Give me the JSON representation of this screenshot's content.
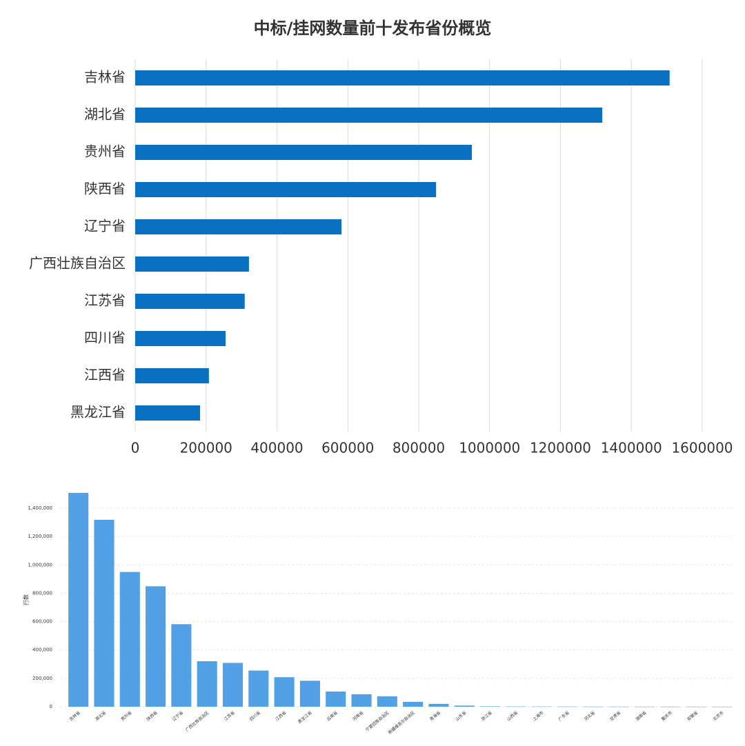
{
  "chart_data": [
    {
      "type": "barh",
      "title": "中标/挂网数量前十发布省份概览",
      "categories": [
        "吉林省",
        "湖北省",
        "贵州省",
        "陕西省",
        "辽宁省",
        "广西壮族自治区",
        "江苏省",
        "四川省",
        "江西省",
        "黑龙江省"
      ],
      "values": [
        1508000,
        1318000,
        950000,
        849000,
        582000,
        321000,
        309000,
        255000,
        208000,
        183000
      ],
      "color": "#0a70c2",
      "xlim": [
        0,
        1600000
      ],
      "xticks": [
        0,
        200000,
        400000,
        600000,
        800000,
        1000000,
        1200000,
        1400000,
        1600000
      ],
      "grid": true
    },
    {
      "type": "bar",
      "ylabel": "行数",
      "categories": [
        "吉林省",
        "湖北省",
        "贵州省",
        "陕西省",
        "辽宁省",
        "广西壮族自治区",
        "江苏省",
        "四川省",
        "江西省",
        "黑龙江省",
        "云南省",
        "河南省",
        "宁夏回族自治区",
        "新疆维吾尔自治区",
        "青海省",
        "山东省",
        "浙江省",
        "山西省",
        "上海市",
        "广东省",
        "河北省",
        "甘肃省",
        "湖南省",
        "重庆市",
        "安徽省",
        "北京市"
      ],
      "values": [
        1508000,
        1318000,
        950000,
        849000,
        582000,
        321000,
        309000,
        255000,
        208000,
        183000,
        107000,
        88000,
        73000,
        34000,
        20000,
        8000,
        3000,
        2000,
        1500,
        1200,
        1000,
        800,
        600,
        500,
        400,
        300
      ],
      "color": "#52a0e6",
      "ylim": [
        0,
        1580000
      ],
      "yticks": [
        0,
        {
          "value": 200000,
          "label": "200,000"
        },
        {
          "value": 400000,
          "label": "400,000"
        },
        {
          "value": 600000,
          "label": "600,000"
        },
        {
          "value": 800000,
          "label": "800,000"
        },
        {
          "value": 1000000,
          "label": "1,000,000"
        },
        {
          "value": 1200000,
          "label": "1,200,000"
        },
        {
          "value": 1400000,
          "label": "1,400,000"
        }
      ],
      "grid": true
    }
  ]
}
